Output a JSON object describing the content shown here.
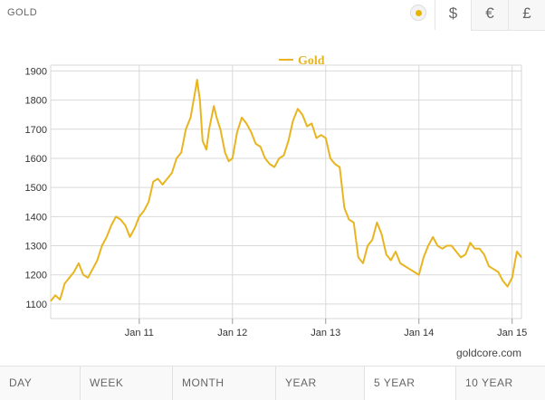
{
  "header": {
    "title": "GOLD",
    "metal_icon": "gold-dot-icon",
    "currencies": [
      {
        "label": "$",
        "active": true
      },
      {
        "label": "€",
        "active": false
      },
      {
        "label": "£",
        "active": false
      }
    ]
  },
  "brand": "goldcore.com",
  "periods": [
    {
      "label": "DAY",
      "active": false
    },
    {
      "label": "WEEK",
      "active": false
    },
    {
      "label": "MONTH",
      "active": false
    },
    {
      "label": "YEAR",
      "active": false
    },
    {
      "label": "5 YEAR",
      "active": true
    },
    {
      "label": "10 YEAR",
      "active": false
    }
  ],
  "chart_data": {
    "type": "line",
    "legend": "Gold",
    "legend_position": "top-center",
    "color": "#e8b520",
    "grid": true,
    "ylim": [
      1050,
      1920
    ],
    "y_ticks": [
      1100,
      1200,
      1300,
      1400,
      1500,
      1600,
      1700,
      1800,
      1900
    ],
    "xlim": [
      2010.05,
      2015.1
    ],
    "x_ticks": [
      {
        "label": "Jan 11",
        "x": 2011
      },
      {
        "label": "Jan 12",
        "x": 2012
      },
      {
        "label": "Jan 13",
        "x": 2013
      },
      {
        "label": "Jan 14",
        "x": 2014
      },
      {
        "label": "Jan 15",
        "x": 2015
      }
    ],
    "series": [
      {
        "name": "Gold",
        "x": [
          2010.05,
          2010.1,
          2010.15,
          2010.2,
          2010.25,
          2010.3,
          2010.35,
          2010.4,
          2010.45,
          2010.5,
          2010.55,
          2010.6,
          2010.65,
          2010.7,
          2010.75,
          2010.8,
          2010.85,
          2010.9,
          2010.95,
          2011.0,
          2011.05,
          2011.1,
          2011.15,
          2011.2,
          2011.25,
          2011.3,
          2011.35,
          2011.4,
          2011.45,
          2011.5,
          2011.55,
          2011.6,
          2011.62,
          2011.65,
          2011.68,
          2011.72,
          2011.75,
          2011.8,
          2011.83,
          2011.87,
          2011.92,
          2011.96,
          2012.0,
          2012.05,
          2012.1,
          2012.15,
          2012.2,
          2012.25,
          2012.3,
          2012.35,
          2012.4,
          2012.45,
          2012.5,
          2012.55,
          2012.6,
          2012.65,
          2012.7,
          2012.75,
          2012.8,
          2012.85,
          2012.9,
          2012.95,
          2013.0,
          2013.05,
          2013.1,
          2013.15,
          2013.2,
          2013.25,
          2013.3,
          2013.35,
          2013.4,
          2013.45,
          2013.5,
          2013.55,
          2013.6,
          2013.65,
          2013.7,
          2013.75,
          2013.8,
          2013.85,
          2013.9,
          2013.95,
          2014.0,
          2014.05,
          2014.1,
          2014.15,
          2014.2,
          2014.25,
          2014.3,
          2014.35,
          2014.4,
          2014.45,
          2014.5,
          2014.55,
          2014.6,
          2014.65,
          2014.7,
          2014.75,
          2014.8,
          2014.85,
          2014.9,
          2014.95,
          2015.0,
          2015.05,
          2015.1
        ],
        "y": [
          1110,
          1130,
          1115,
          1170,
          1190,
          1210,
          1240,
          1200,
          1190,
          1220,
          1250,
          1300,
          1330,
          1370,
          1400,
          1390,
          1370,
          1330,
          1360,
          1400,
          1420,
          1450,
          1520,
          1530,
          1510,
          1530,
          1550,
          1600,
          1620,
          1700,
          1740,
          1830,
          1870,
          1800,
          1660,
          1630,
          1700,
          1780,
          1740,
          1700,
          1620,
          1590,
          1600,
          1690,
          1740,
          1720,
          1690,
          1650,
          1640,
          1600,
          1580,
          1570,
          1600,
          1610,
          1660,
          1730,
          1770,
          1750,
          1710,
          1720,
          1670,
          1680,
          1670,
          1600,
          1580,
          1570,
          1430,
          1390,
          1380,
          1260,
          1240,
          1300,
          1320,
          1380,
          1340,
          1270,
          1250,
          1280,
          1240,
          1230,
          1220,
          1210,
          1200,
          1260,
          1300,
          1330,
          1300,
          1290,
          1300,
          1300,
          1280,
          1260,
          1270,
          1310,
          1290,
          1290,
          1270,
          1230,
          1220,
          1210,
          1180,
          1160,
          1190,
          1280,
          1260
        ]
      }
    ]
  }
}
